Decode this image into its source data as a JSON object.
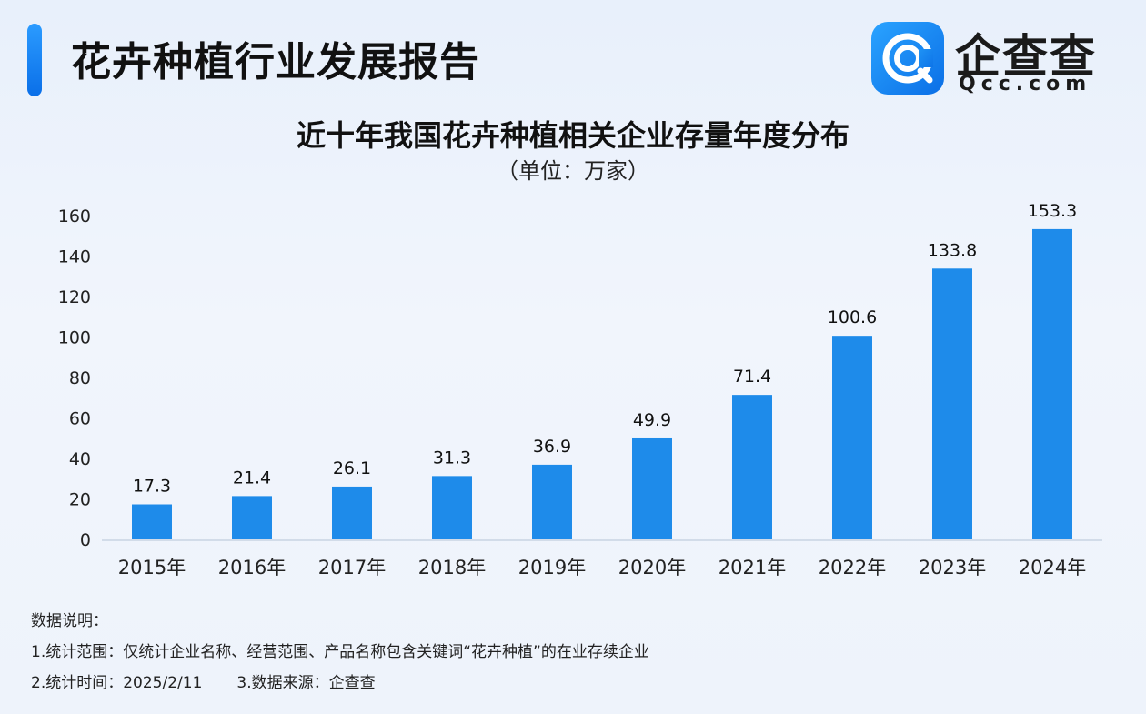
{
  "header": {
    "report_title": "花卉种植行业发展报告",
    "logo": {
      "name": "企查查",
      "domain": "Qcc.com"
    }
  },
  "colors": {
    "bar": "#1e8bea",
    "accent": "#1677ff",
    "axis": "#c8d3e3"
  },
  "chart_data": {
    "type": "bar",
    "title": "近十年我国花卉种植相关企业存量年度分布",
    "subtitle": "（单位：万家）",
    "categories": [
      "2015年",
      "2016年",
      "2017年",
      "2018年",
      "2019年",
      "2020年",
      "2021年",
      "2022年",
      "2023年",
      "2024年"
    ],
    "values": [
      17.3,
      21.4,
      26.1,
      31.3,
      36.9,
      49.9,
      71.4,
      100.6,
      133.8,
      153.3
    ],
    "value_labels": [
      "17.3",
      "21.4",
      "26.1",
      "31.3",
      "36.9",
      "49.9",
      "71.4",
      "100.6",
      "133.8",
      "153.3"
    ],
    "yticks": [
      0,
      20,
      40,
      60,
      80,
      100,
      120,
      140,
      160
    ],
    "ylim": [
      0,
      160
    ],
    "grid": false,
    "legend": "none"
  },
  "notes": {
    "heading": "数据说明：",
    "line1": "1.统计范围：仅统计企业名称、经营范围、产品名称包含关键词“花卉种植”的在业存续企业",
    "line2a": "2.统计时间：2025/2/11",
    "line2b": "3.数据来源：企查查"
  }
}
